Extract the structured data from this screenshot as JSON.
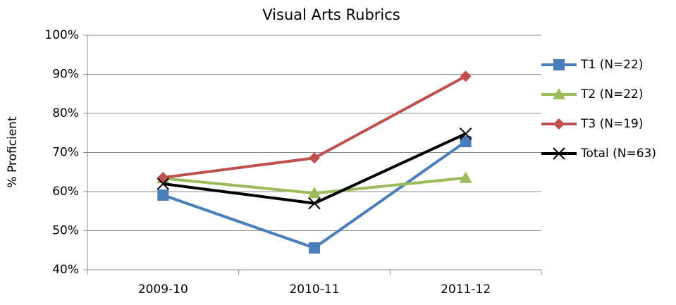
{
  "chart_data": {
    "type": "line",
    "title": "Visual Arts Rubrics",
    "y_label": "% Proficient",
    "categories": [
      "2009-10",
      "2010-11",
      "2011-12"
    ],
    "series": [
      {
        "name": "T1 (N=22)",
        "color": "#4a7ebb",
        "marker": "square",
        "values": [
          59.1,
          45.6,
          72.8
        ]
      },
      {
        "name": "T2 (N=22)",
        "color": "#9bbb59",
        "marker": "triangle",
        "values": [
          63.4,
          59.6,
          63.5
        ]
      },
      {
        "name": "T3 (N=19)",
        "color": "#c0504d",
        "marker": "diamond",
        "values": [
          63.6,
          68.6,
          89.5
        ]
      },
      {
        "name": "Total (N=63)",
        "color": "#000000",
        "marker": "x",
        "values": [
          62,
          57,
          74.8
        ]
      }
    ],
    "ylim": [
      40,
      100
    ],
    "yticks": [
      {
        "value": 40,
        "label": "40%"
      },
      {
        "value": 50,
        "label": "50%"
      },
      {
        "value": 60,
        "label": "60%"
      },
      {
        "value": 70,
        "label": "70%"
      },
      {
        "value": 80,
        "label": "80%"
      },
      {
        "value": 90,
        "label": "90%"
      },
      {
        "value": 100,
        "label": "100%"
      }
    ],
    "grid": true,
    "legend": "right"
  }
}
